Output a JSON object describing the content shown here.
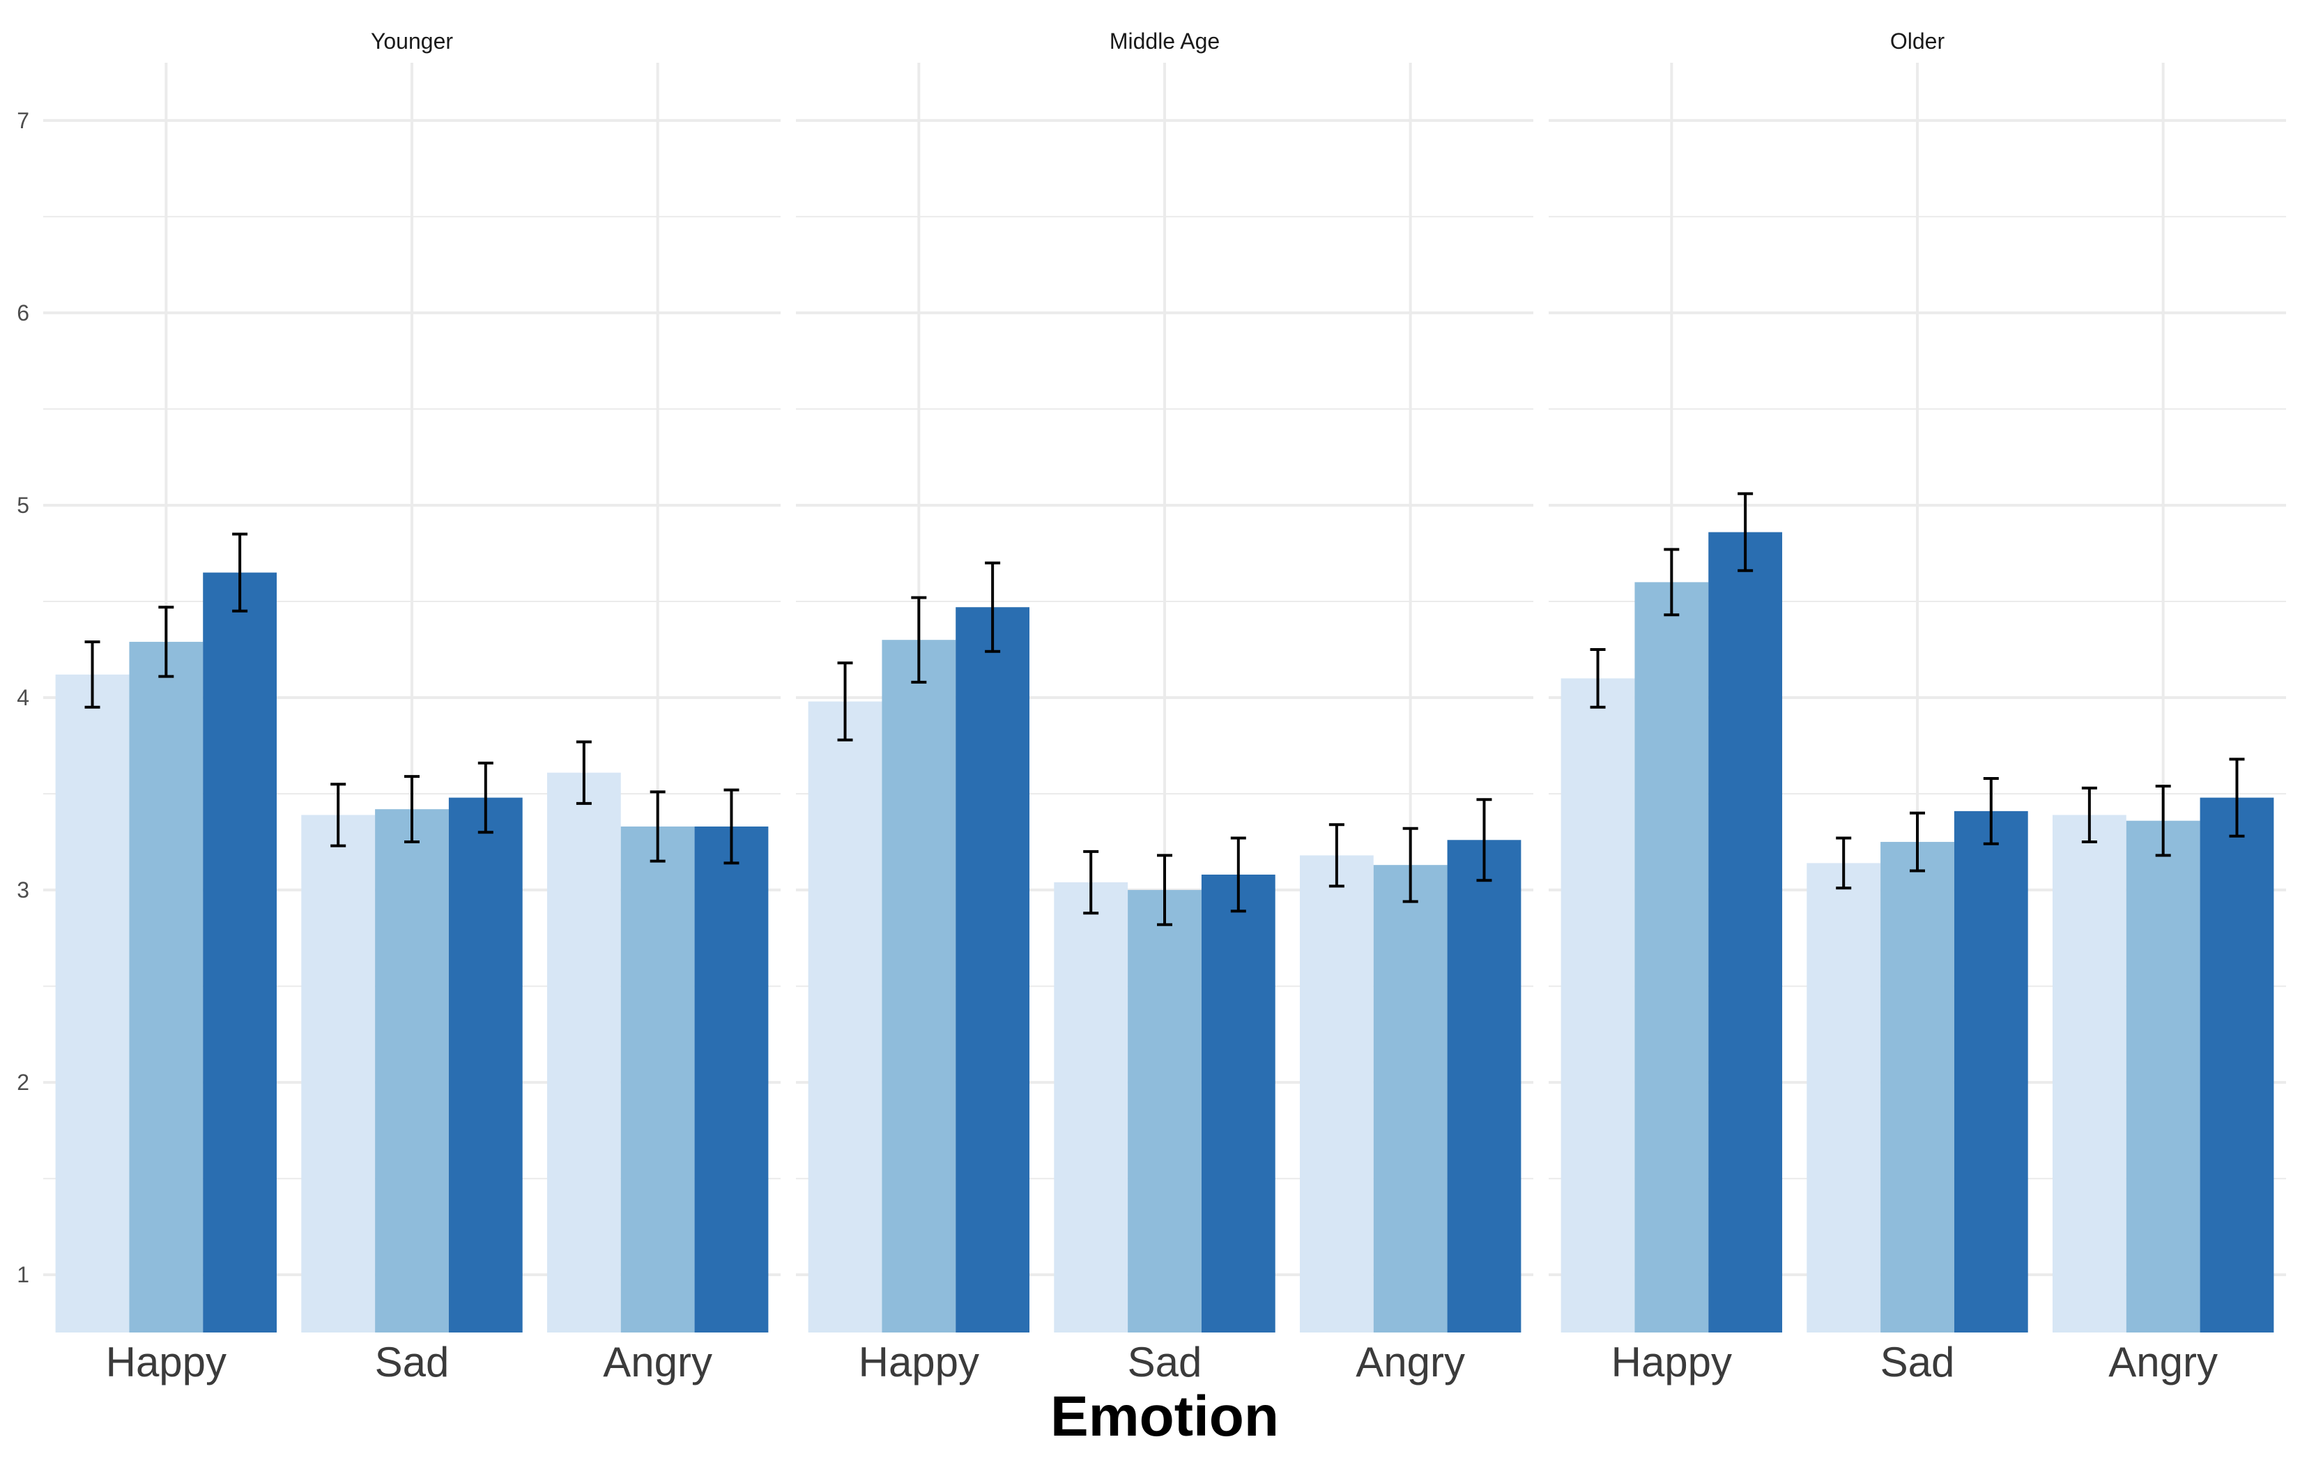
{
  "chart_data": {
    "type": "bar",
    "xlabel": "Emotion",
    "ylabel": "",
    "ylim": [
      0.7,
      7.3
    ],
    "yticks": [
      1,
      2,
      3,
      4,
      5,
      6,
      7
    ],
    "grid": true,
    "categories": [
      "Happy",
      "Sad",
      "Angry"
    ],
    "series_colors": [
      "#d7e6f5",
      "#8fbcdb",
      "#2a6eb1"
    ],
    "error_bar_color": "#000000",
    "panels": [
      {
        "title": "Younger",
        "series": [
          {
            "values": [
              4.12,
              3.39,
              3.61
            ],
            "errors": [
              0.17,
              0.16,
              0.16
            ]
          },
          {
            "values": [
              4.29,
              3.42,
              3.33
            ],
            "errors": [
              0.18,
              0.17,
              0.18
            ]
          },
          {
            "values": [
              4.65,
              3.48,
              3.33
            ],
            "errors": [
              0.2,
              0.18,
              0.19
            ]
          }
        ]
      },
      {
        "title": "Middle Age",
        "series": [
          {
            "values": [
              3.98,
              3.04,
              3.18
            ],
            "errors": [
              0.2,
              0.16,
              0.16
            ]
          },
          {
            "values": [
              4.3,
              3.0,
              3.13
            ],
            "errors": [
              0.22,
              0.18,
              0.19
            ]
          },
          {
            "values": [
              4.47,
              3.08,
              3.26
            ],
            "errors": [
              0.23,
              0.19,
              0.21
            ]
          }
        ]
      },
      {
        "title": "Older",
        "series": [
          {
            "values": [
              4.1,
              3.14,
              3.39
            ],
            "errors": [
              0.15,
              0.13,
              0.14
            ]
          },
          {
            "values": [
              4.6,
              3.25,
              3.36
            ],
            "errors": [
              0.17,
              0.15,
              0.18
            ]
          },
          {
            "values": [
              4.86,
              3.41,
              3.48
            ],
            "errors": [
              0.2,
              0.17,
              0.2
            ]
          }
        ]
      }
    ]
  }
}
